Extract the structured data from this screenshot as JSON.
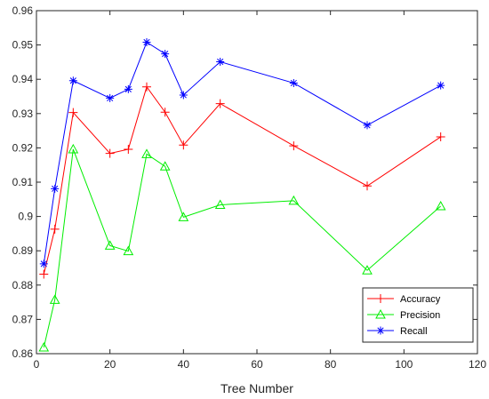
{
  "chart_data": {
    "type": "line",
    "xlabel": "Tree Number",
    "ylabel": "",
    "xlim": [
      0,
      120
    ],
    "ylim": [
      0.86,
      0.96
    ],
    "x_ticks": [
      0,
      20,
      40,
      60,
      80,
      100,
      120
    ],
    "y_ticks": [
      0.86,
      0.87,
      0.88,
      0.89,
      0.9,
      0.91,
      0.92,
      0.93,
      0.94,
      0.95,
      0.96
    ],
    "x_tick_labels": [
      "0",
      "20",
      "40",
      "60",
      "80",
      "100",
      "120"
    ],
    "y_tick_labels": [
      "0.86",
      "0.87",
      "0.88",
      "0.89",
      "0.9",
      "0.91",
      "0.92",
      "0.93",
      "0.94",
      "0.95",
      "0.96"
    ],
    "grid": false,
    "legend_position": "bottom-right",
    "x": [
      2,
      5,
      10,
      20,
      25,
      30,
      35,
      40,
      50,
      70,
      90,
      110
    ],
    "series": [
      {
        "name": "Accuracy",
        "color": "#ff0000",
        "marker": "plus",
        "values": [
          0.8832,
          0.8963,
          0.9303,
          0.9184,
          0.9196,
          0.9378,
          0.9304,
          0.9208,
          0.9329,
          0.9206,
          0.9089,
          0.9232
        ]
      },
      {
        "name": "Precision",
        "color": "#00ee00",
        "marker": "triangle",
        "values": [
          0.8618,
          0.8757,
          0.9196,
          0.8915,
          0.8899,
          0.9182,
          0.9146,
          0.8998,
          0.9034,
          0.9046,
          0.8843,
          0.903
        ]
      },
      {
        "name": "Recall",
        "color": "#0000ff",
        "marker": "asterisk",
        "values": [
          0.8862,
          0.9081,
          0.9396,
          0.9345,
          0.9371,
          0.9508,
          0.9474,
          0.9354,
          0.9451,
          0.9389,
          0.9266,
          0.9382
        ]
      }
    ]
  }
}
